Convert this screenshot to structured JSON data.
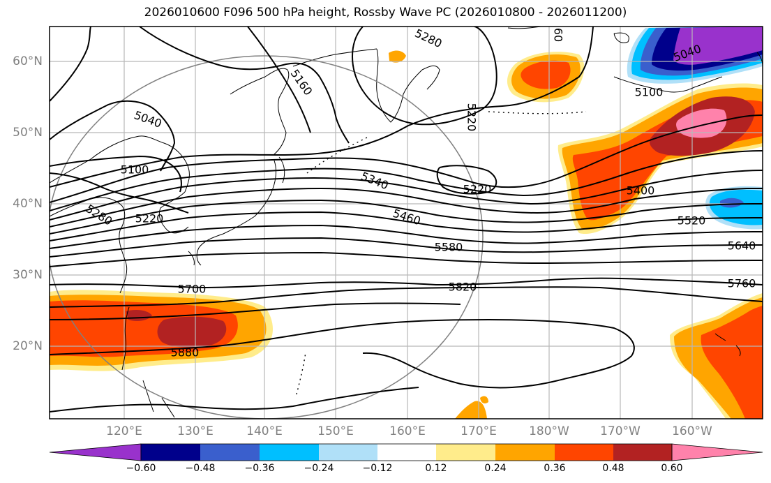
{
  "title": "2026010600 F096 500 hPa height, Rossby Wave PC (2026010800 - 2026011200)",
  "lat_labels": [
    {
      "text": "60°N",
      "lat": 60
    },
    {
      "text": "50°N",
      "lat": 50
    },
    {
      "text": "40°N",
      "lat": 40
    },
    {
      "text": "30°N",
      "lat": 30
    },
    {
      "text": "20°N",
      "lat": 20
    }
  ],
  "lon_labels": [
    {
      "text": "120°E",
      "lon": 120
    },
    {
      "text": "130°E",
      "lon": 130
    },
    {
      "text": "140°E",
      "lon": 140
    },
    {
      "text": "150°E",
      "lon": 150
    },
    {
      "text": "160°E",
      "lon": 160
    },
    {
      "text": "170°E",
      "lon": 170
    },
    {
      "text": "180°W",
      "lon": 180
    },
    {
      "text": "170°W",
      "lon": 190
    },
    {
      "text": "160°W",
      "lon": 200
    }
  ],
  "contour_labels": [
    {
      "text": "5280",
      "lon": 173,
      "lat": 61.5,
      "rot": 25
    },
    {
      "text": "5160",
      "lon": 145.5,
      "lat": 58,
      "rot": 55
    },
    {
      "text": "5040",
      "lon": 124,
      "lat": 52,
      "rot": 20
    },
    {
      "text": "5100",
      "lon": 122,
      "lat": 44.8,
      "rot": 0
    },
    {
      "text": "5280",
      "lon": 117,
      "lat": 38.5,
      "rot": 32
    },
    {
      "text": "5220",
      "lon": 124.5,
      "lat": 38,
      "rot": 0
    },
    {
      "text": "5340",
      "lon": 156,
      "lat": 43.5,
      "rot": 22
    },
    {
      "text": "5460",
      "lon": 161,
      "lat": 38.2,
      "rot": 18
    },
    {
      "text": "5580",
      "lon": 166,
      "lat": 33.8,
      "rot": 0
    },
    {
      "text": "5700",
      "lon": 130,
      "lat": 28,
      "rot": 0
    },
    {
      "text": "5820",
      "lon": 175.5,
      "lat": 28.2,
      "rot": 0
    },
    {
      "text": "5880",
      "lon": 126,
      "lat": 19,
      "rot": 0
    },
    {
      "text": "5220",
      "lon": 167.5,
      "lat": 50.5,
      "rot": 90
    },
    {
      "text": "5220",
      "lon": 167.2,
      "lat": 42.5,
      "rot": 0
    },
    {
      "text": "60",
      "lon": 179,
      "lat": 63.8,
      "rot": 90
    },
    {
      "text": "5100",
      "lon": 196.5,
      "lat": 55.4,
      "rot": 0
    },
    {
      "text": "5040",
      "lon": 202.5,
      "lat": 61.2,
      "rot": -20
    },
    {
      "text": "5400",
      "lon": 193.8,
      "lat": 41.7,
      "rot": 0
    },
    {
      "text": "5520",
      "lon": 202.8,
      "lat": 37.5,
      "rot": 0
    },
    {
      "text": "5640",
      "lon": 212,
      "lat": 34.3,
      "rot": 0
    },
    {
      "text": "5760",
      "lon": 211,
      "lat": 29,
      "rot": 0
    }
  ],
  "colorbar": {
    "levels": [
      "−0.60",
      "−0.48",
      "−0.36",
      "−0.24",
      "−0.12",
      "0.12",
      "0.24",
      "0.36",
      "0.48",
      "0.60"
    ],
    "colors": [
      "#9932cc",
      "#00008b",
      "#3a5fcd",
      "#00bfff",
      "#b0e0f8",
      "#ffffff",
      "#ffec8b",
      "#ffa500",
      "#ff4500",
      "#b22222",
      "#ff82ab"
    ]
  }
}
